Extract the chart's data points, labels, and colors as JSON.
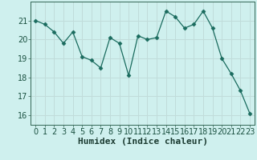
{
  "x": [
    0,
    1,
    2,
    3,
    4,
    5,
    6,
    7,
    8,
    9,
    10,
    11,
    12,
    13,
    14,
    15,
    16,
    17,
    18,
    19,
    20,
    21,
    22,
    23
  ],
  "y": [
    21.0,
    20.8,
    20.4,
    19.8,
    20.4,
    19.1,
    18.9,
    18.5,
    20.1,
    19.8,
    18.1,
    20.2,
    20.0,
    20.1,
    21.5,
    21.2,
    20.6,
    20.8,
    21.5,
    20.6,
    19.0,
    18.2,
    17.3,
    16.1
  ],
  "line_color": "#1a6b5e",
  "marker": "D",
  "marker_size": 2.5,
  "bg_color": "#cff0ee",
  "grid_color": "#c0dcda",
  "xlabel": "Humidex (Indice chaleur)",
  "xlabel_fontsize": 8,
  "tick_fontsize": 7,
  "ylim": [
    15.5,
    22.0
  ],
  "xlim": [
    -0.5,
    23.5
  ],
  "yticks": [
    16,
    17,
    18,
    19,
    20,
    21
  ],
  "xticks": [
    0,
    1,
    2,
    3,
    4,
    5,
    6,
    7,
    8,
    9,
    10,
    11,
    12,
    13,
    14,
    15,
    16,
    17,
    18,
    19,
    20,
    21,
    22,
    23
  ]
}
